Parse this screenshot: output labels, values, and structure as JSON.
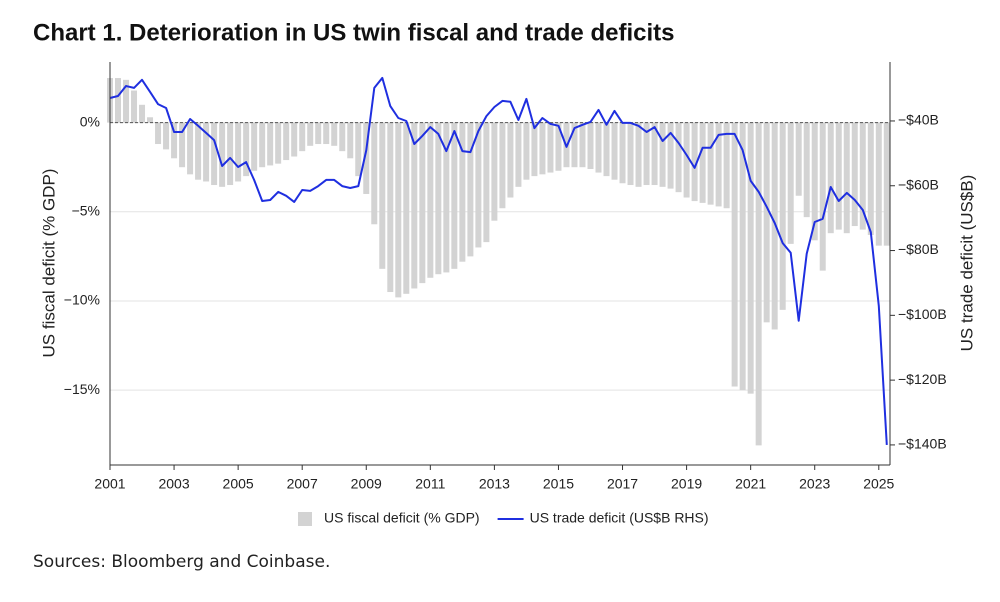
{
  "chart_data": {
    "type": "combo",
    "title": "Chart 1. Deterioration in US twin fiscal and trade deficits",
    "source": "Sources: Bloomberg and Coinbase.",
    "y_label": "US fiscal deficit (% GDP)",
    "y2_label": "US trade deficit (US$B)",
    "x": [
      2001,
      2001.25,
      2001.5,
      2001.75,
      2002,
      2002.25,
      2002.5,
      2002.75,
      2003,
      2003.25,
      2003.5,
      2003.75,
      2004,
      2004.25,
      2004.5,
      2004.75,
      2005,
      2005.25,
      2005.5,
      2005.75,
      2006,
      2006.25,
      2006.5,
      2006.75,
      2007,
      2007.25,
      2007.5,
      2007.75,
      2008,
      2008.25,
      2008.5,
      2008.75,
      2009,
      2009.25,
      2009.5,
      2009.75,
      2010,
      2010.25,
      2010.5,
      2010.75,
      2011,
      2011.25,
      2011.5,
      2011.75,
      2012,
      2012.25,
      2012.5,
      2012.75,
      2013,
      2013.25,
      2013.5,
      2013.75,
      2014,
      2014.25,
      2014.5,
      2014.75,
      2015,
      2015.25,
      2015.5,
      2015.75,
      2016,
      2016.25,
      2016.5,
      2016.75,
      2017,
      2017.25,
      2017.5,
      2017.75,
      2018,
      2018.25,
      2018.5,
      2018.75,
      2019,
      2019.25,
      2019.5,
      2019.75,
      2020,
      2020.25,
      2020.5,
      2020.75,
      2021,
      2021.25,
      2021.5,
      2021.75,
      2022,
      2022.25,
      2022.5,
      2022.75,
      2023,
      2023.25,
      2023.5,
      2023.75,
      2024,
      2024.25,
      2024.5,
      2024.75,
      2025,
      2025.25
    ],
    "series": [
      {
        "name": "US fiscal deficit (% GDP)",
        "type": "bar",
        "color": "#d3d3d3",
        "values": [
          2.5,
          2.5,
          2.4,
          1.8,
          1.0,
          0.3,
          -1.2,
          -1.5,
          -2.0,
          -2.5,
          -2.9,
          -3.2,
          -3.3,
          -3.5,
          -3.6,
          -3.5,
          -3.3,
          -3.0,
          -2.7,
          -2.5,
          -2.4,
          -2.3,
          -2.1,
          -1.9,
          -1.6,
          -1.3,
          -1.2,
          -1.2,
          -1.3,
          -1.6,
          -2.0,
          -3.0,
          -4.0,
          -5.7,
          -8.2,
          -9.5,
          -9.8,
          -9.6,
          -9.3,
          -9.0,
          -8.7,
          -8.5,
          -8.4,
          -8.2,
          -7.8,
          -7.5,
          -7.0,
          -6.7,
          -5.5,
          -4.8,
          -4.2,
          -3.6,
          -3.2,
          -3.0,
          -2.9,
          -2.8,
          -2.7,
          -2.5,
          -2.5,
          -2.5,
          -2.6,
          -2.8,
          -3.0,
          -3.2,
          -3.4,
          -3.5,
          -3.6,
          -3.5,
          -3.5,
          -3.6,
          -3.7,
          -3.9,
          -4.2,
          -4.4,
          -4.5,
          -4.6,
          -4.7,
          -4.8,
          -14.8,
          -15.0,
          -15.2,
          -18.1,
          -11.2,
          -11.6,
          -10.5,
          -6.8,
          -4.1,
          -5.3,
          -6.6,
          -8.3,
          -6.2,
          -6.0,
          -6.2,
          -5.8,
          -6.0,
          -6.3,
          -6.9,
          -6.9
        ]
      },
      {
        "name": "US trade deficit (US$B RHS)",
        "type": "line",
        "axis": "y2",
        "color": "#1f2fe0",
        "values": [
          -32.9,
          -32.3,
          -29.2,
          -29.8,
          -27.3,
          -31,
          -34.8,
          -36,
          -43.4,
          -43.4,
          -39.4,
          -41.5,
          -43.7,
          -45.9,
          -53.9,
          -51.4,
          -54.2,
          -52.7,
          -58.2,
          -64.7,
          -64.4,
          -61.9,
          -63.1,
          -65,
          -61.3,
          -61.6,
          -60.1,
          -58.2,
          -58.2,
          -60.1,
          -60.7,
          -60.1,
          -49,
          -29.8,
          -26.7,
          -35.4,
          -39.1,
          -40,
          -47.1,
          -44.6,
          -41.9,
          -44,
          -49.3,
          -43.1,
          -49.3,
          -49.6,
          -43.1,
          -38.5,
          -35.7,
          -33.8,
          -34.1,
          -39.7,
          -33.2,
          -42.2,
          -39.1,
          -40.9,
          -41.5,
          -48,
          -42.2,
          -41.2,
          -40.3,
          -36.6,
          -41.2,
          -36.9,
          -40.6,
          -40.6,
          -41.5,
          -43.4,
          -41.9,
          -46.2,
          -43.7,
          -46.8,
          -50.5,
          -54.5,
          -48.3,
          -48.3,
          -44.3,
          -44,
          -44,
          -49,
          -58.5,
          -61.9,
          -66.5,
          -71.5,
          -77.7,
          -80.7,
          -101.7,
          -81,
          -71.2,
          -70.2,
          -60.4,
          -64.7,
          -62.2,
          -64.4,
          -67.5,
          -74.3,
          -97.1,
          -140
        ]
      }
    ],
    "xlim": [
      2001,
      2025.35
    ],
    "xticks": [
      2001,
      2003,
      2005,
      2007,
      2009,
      2011,
      2013,
      2015,
      2017,
      2019,
      2021,
      2023,
      2025
    ],
    "ylim": [
      -19.2,
      3.4
    ],
    "yticks": [
      {
        "value": 0,
        "label": "0%"
      },
      {
        "value": -5,
        "label": "−5%"
      },
      {
        "value": -10,
        "label": "−10%"
      },
      {
        "value": -15,
        "label": "−15%"
      }
    ],
    "y2lim": [
      -146.2,
      -21.8
    ],
    "y2ticks": [
      {
        "value": -40,
        "label": "−$40B"
      },
      {
        "value": -60,
        "label": "−$60B"
      },
      {
        "value": -80,
        "label": "−$80B"
      },
      {
        "value": -100,
        "label": "−$100B"
      },
      {
        "value": -120,
        "label": "−$120B"
      },
      {
        "value": -140,
        "label": "−$140B"
      }
    ],
    "grid": true,
    "legend": "bottom"
  }
}
